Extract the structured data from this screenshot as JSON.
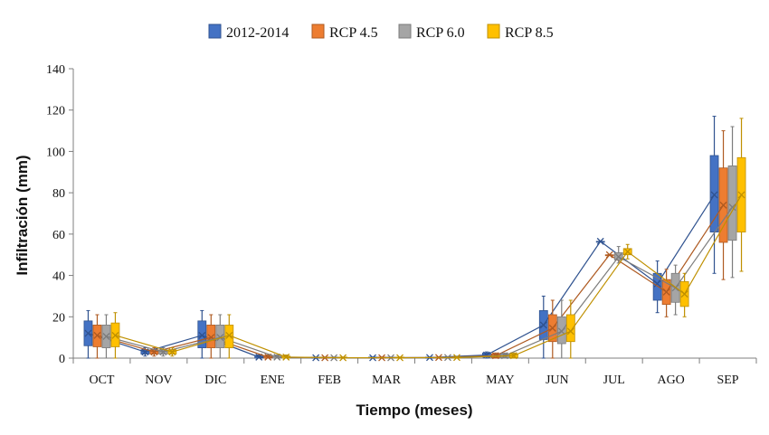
{
  "chart_data": {
    "type": "box",
    "title": "",
    "xlabel": "Tiempo (meses)",
    "ylabel": "Infiltración (mm)",
    "ylim": [
      0,
      140
    ],
    "yticks": [
      0,
      20,
      40,
      60,
      80,
      100,
      120,
      140
    ],
    "grid": false,
    "legend_position": "top",
    "categories": [
      "OCT",
      "NOV",
      "DIC",
      "ENE",
      "FEB",
      "MAR",
      "ABR",
      "MAY",
      "JUN",
      "JUL",
      "AGO",
      "SEP"
    ],
    "series": [
      {
        "name": "2012-2014",
        "color": "#4472C4",
        "border": "#2F528F",
        "mean": [
          12,
          3,
          11,
          0.5,
          0.2,
          0.2,
          0.3,
          1.5,
          16,
          56.5,
          36,
          79
        ],
        "min": [
          0,
          1,
          0,
          0,
          0,
          0,
          0,
          0,
          0,
          56.5,
          22,
          41
        ],
        "q1": [
          6,
          2,
          5,
          0,
          0,
          0,
          0,
          0.5,
          9,
          56.5,
          28,
          61
        ],
        "q3": [
          18,
          4,
          18,
          1,
          0.5,
          0.5,
          0.5,
          2.5,
          23,
          56.5,
          41,
          98
        ],
        "max": [
          23,
          5,
          23,
          1.5,
          0.5,
          0.5,
          0.5,
          3,
          30,
          56.5,
          47,
          117
        ]
      },
      {
        "name": "RCP 4.5",
        "color": "#ED7D31",
        "border": "#AE5A21",
        "mean": [
          11,
          3,
          10,
          0.5,
          0.2,
          0.2,
          0.3,
          1.2,
          14.5,
          50,
          32,
          74
        ],
        "min": [
          0,
          1,
          0,
          0,
          0,
          0,
          0,
          0,
          0,
          50,
          20,
          38
        ],
        "q1": [
          5.5,
          2,
          5,
          0,
          0,
          0,
          0,
          0.3,
          8,
          50,
          26,
          56
        ],
        "q3": [
          16,
          4,
          16,
          1,
          0.5,
          0.5,
          0.5,
          2,
          21,
          50,
          38,
          92
        ],
        "max": [
          21,
          5,
          21,
          1.5,
          0.5,
          0.5,
          0.5,
          2.5,
          28,
          50,
          43,
          110
        ]
      },
      {
        "name": "RCP 6.0",
        "color": "#A5A5A5",
        "border": "#7C7C7C",
        "mean": [
          10.5,
          3,
          10,
          0.5,
          0.2,
          0.2,
          0.3,
          1.2,
          13,
          49,
          34,
          73
        ],
        "min": [
          0,
          1,
          0,
          0,
          0,
          0,
          0,
          0,
          0,
          46,
          21,
          39
        ],
        "q1": [
          5,
          2,
          5,
          0,
          0,
          0,
          0,
          0.3,
          7,
          47.5,
          27,
          57
        ],
        "q3": [
          16,
          4,
          16,
          1,
          0.5,
          0.5,
          0.5,
          2,
          20,
          51,
          41,
          93
        ],
        "max": [
          21,
          5,
          21,
          1.5,
          0.5,
          0.5,
          0.5,
          2.5,
          28,
          54,
          45,
          112
        ]
      },
      {
        "name": "RCP 8.5",
        "color": "#FFC000",
        "border": "#BF9000",
        "mean": [
          11,
          3,
          11,
          0.5,
          0.2,
          0.2,
          0.3,
          1.2,
          13,
          51.5,
          31,
          79
        ],
        "min": [
          0,
          1,
          0,
          0,
          0,
          0,
          0,
          0,
          0,
          48,
          20,
          42
        ],
        "q1": [
          5.5,
          2,
          5,
          0,
          0,
          0,
          0,
          0.3,
          8,
          50,
          25,
          61
        ],
        "q3": [
          17,
          4,
          16,
          1,
          0.5,
          0.5,
          0.5,
          2,
          21,
          53,
          37,
          97
        ],
        "max": [
          22,
          5,
          21,
          1.5,
          0.5,
          0.5,
          0.5,
          2.5,
          28,
          55,
          41,
          116
        ]
      }
    ]
  }
}
